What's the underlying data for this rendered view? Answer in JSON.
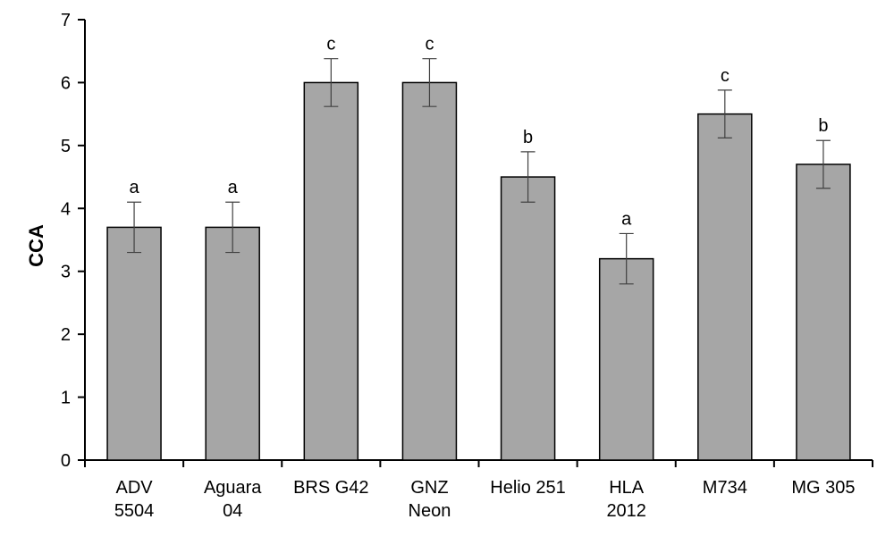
{
  "chart_data": {
    "type": "bar",
    "title": "",
    "xlabel": "",
    "ylabel": "CCA",
    "ylim": [
      0,
      7
    ],
    "yticks": [
      0,
      1,
      2,
      3,
      4,
      5,
      6,
      7
    ],
    "grid": false,
    "legend": "none",
    "categories": [
      [
        "ADV",
        "5504"
      ],
      [
        "Aguara",
        "04"
      ],
      [
        "BRS G42"
      ],
      [
        "GNZ",
        "Neon"
      ],
      [
        "Helio 251"
      ],
      [
        "HLA",
        "2012"
      ],
      [
        "M734"
      ],
      [
        "MG 305"
      ]
    ],
    "values": [
      3.7,
      3.7,
      6.0,
      6.0,
      4.5,
      3.2,
      5.5,
      4.7
    ],
    "error": [
      0.4,
      0.4,
      0.38,
      0.38,
      0.4,
      0.4,
      0.38,
      0.38
    ],
    "significance_letters": [
      "a",
      "a",
      "c",
      "c",
      "b",
      "a",
      "c",
      "b"
    ],
    "colors": {
      "bar_fill": "#a6a6a6",
      "bar_stroke": "#000000",
      "axis": "#000000",
      "errorbar": "#404040"
    }
  }
}
